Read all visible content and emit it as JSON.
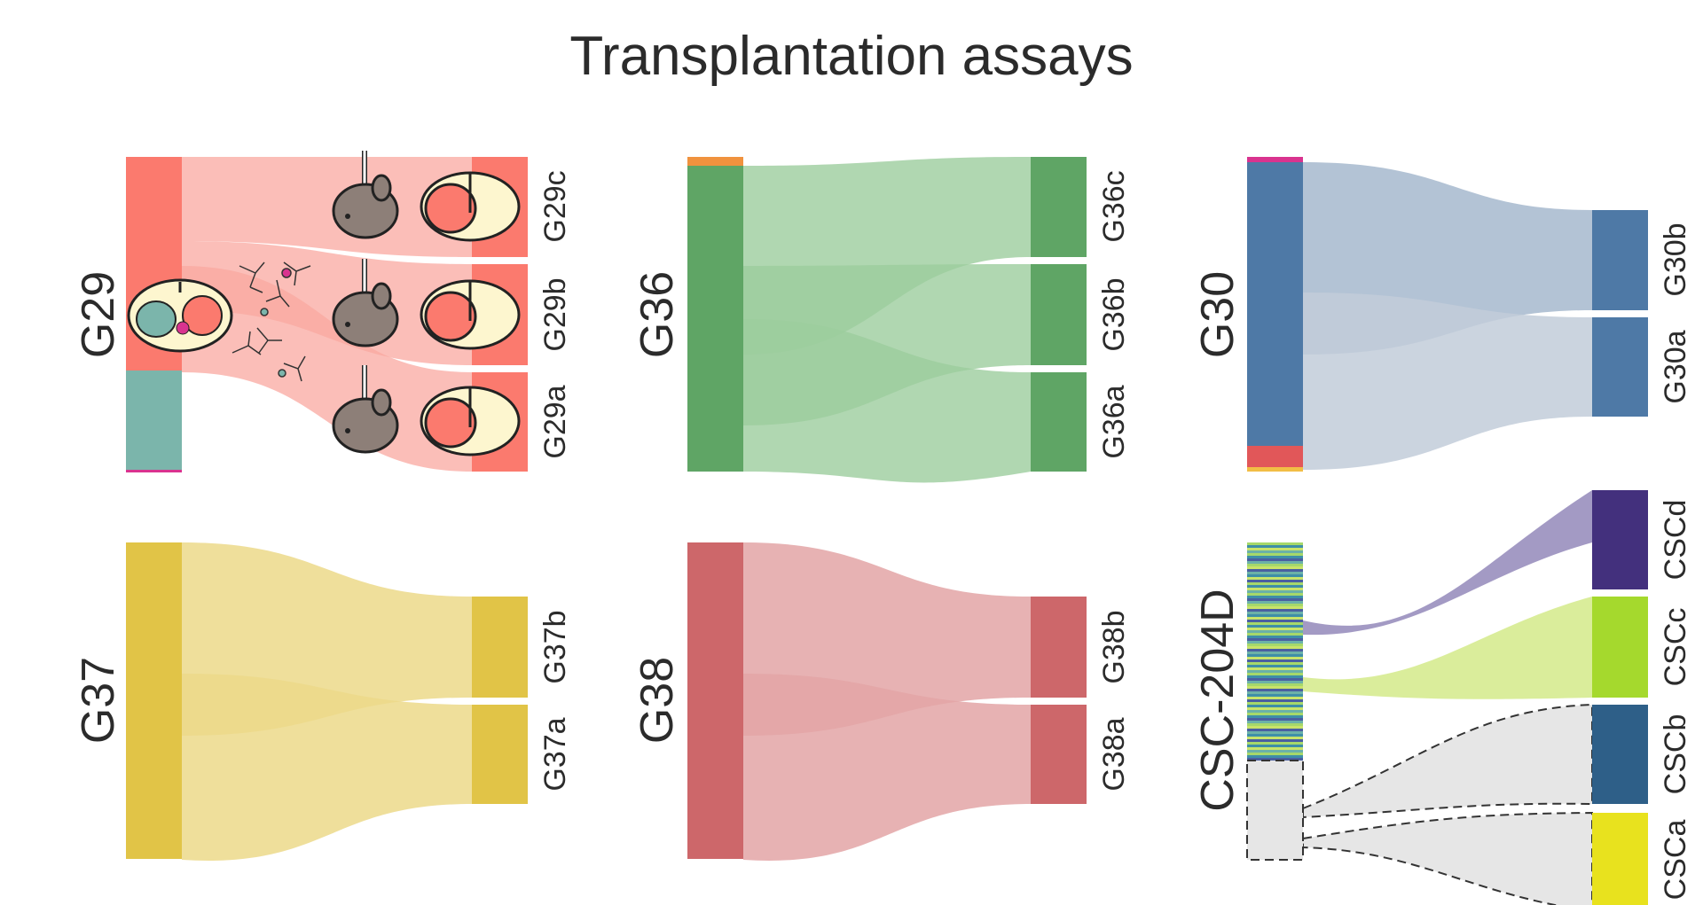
{
  "title": "Transplantation assays",
  "panels": [
    {
      "id": "g29",
      "name": "G29",
      "source_colors": [
        "#fb7a6e",
        "#7bb5ab",
        "#d9338f"
      ],
      "targets": [
        {
          "label": "G29c",
          "color": "#fb7a6e"
        },
        {
          "label": "G29b",
          "color": "#fb7a6e"
        },
        {
          "label": "G29a",
          "color": "#fb7a6e"
        }
      ],
      "flow_color": "#f9a8a0"
    },
    {
      "id": "g36",
      "name": "G36",
      "source_colors": [
        "#f0923e",
        "#5fa565"
      ],
      "targets": [
        {
          "label": "G36c",
          "color": "#5fa565"
        },
        {
          "label": "G36b",
          "color": "#5fa565"
        },
        {
          "label": "G36a",
          "color": "#5fa565"
        }
      ],
      "flow_color": "#9ccd9e"
    },
    {
      "id": "g30",
      "name": "G30",
      "source_colors": [
        "#d9338f",
        "#4e79a6",
        "#e15759",
        "#f2be45"
      ],
      "targets": [
        {
          "label": "G30b",
          "color": "#4e79a6"
        },
        {
          "label": "G30a",
          "color": "#4e79a6"
        }
      ],
      "flow_color": "#a6b8ce"
    },
    {
      "id": "g37",
      "name": "G37",
      "source_colors": [
        "#e1c447"
      ],
      "targets": [
        {
          "label": "G37b",
          "color": "#e1c447"
        },
        {
          "label": "G37a",
          "color": "#e1c447"
        }
      ],
      "flow_color": "#ecd98a"
    },
    {
      "id": "g38",
      "name": "G38",
      "source_colors": [
        "#cd676a"
      ],
      "targets": [
        {
          "label": "G38b",
          "color": "#cd676a"
        },
        {
          "label": "G38a",
          "color": "#cd676a"
        }
      ],
      "flow_color": "#e3a4a6"
    },
    {
      "id": "csc",
      "name": "CSC-204D",
      "source_colors": [
        "#a6d86a",
        "#6bb1a8",
        "#4a5fa0",
        "#c8e36a",
        "#3e8fa8"
      ],
      "targets": [
        {
          "label": "CSCd",
          "color": "#43307d"
        },
        {
          "label": "CSCc",
          "color": "#a5d92d"
        },
        {
          "label": "CSCb",
          "color": "#2e5f88"
        },
        {
          "label": "CSCa",
          "color": "#e8e21e"
        }
      ],
      "flow_colors": [
        "#9e95c1",
        "#d8ec96",
        "#e6e6e6"
      ]
    }
  ]
}
